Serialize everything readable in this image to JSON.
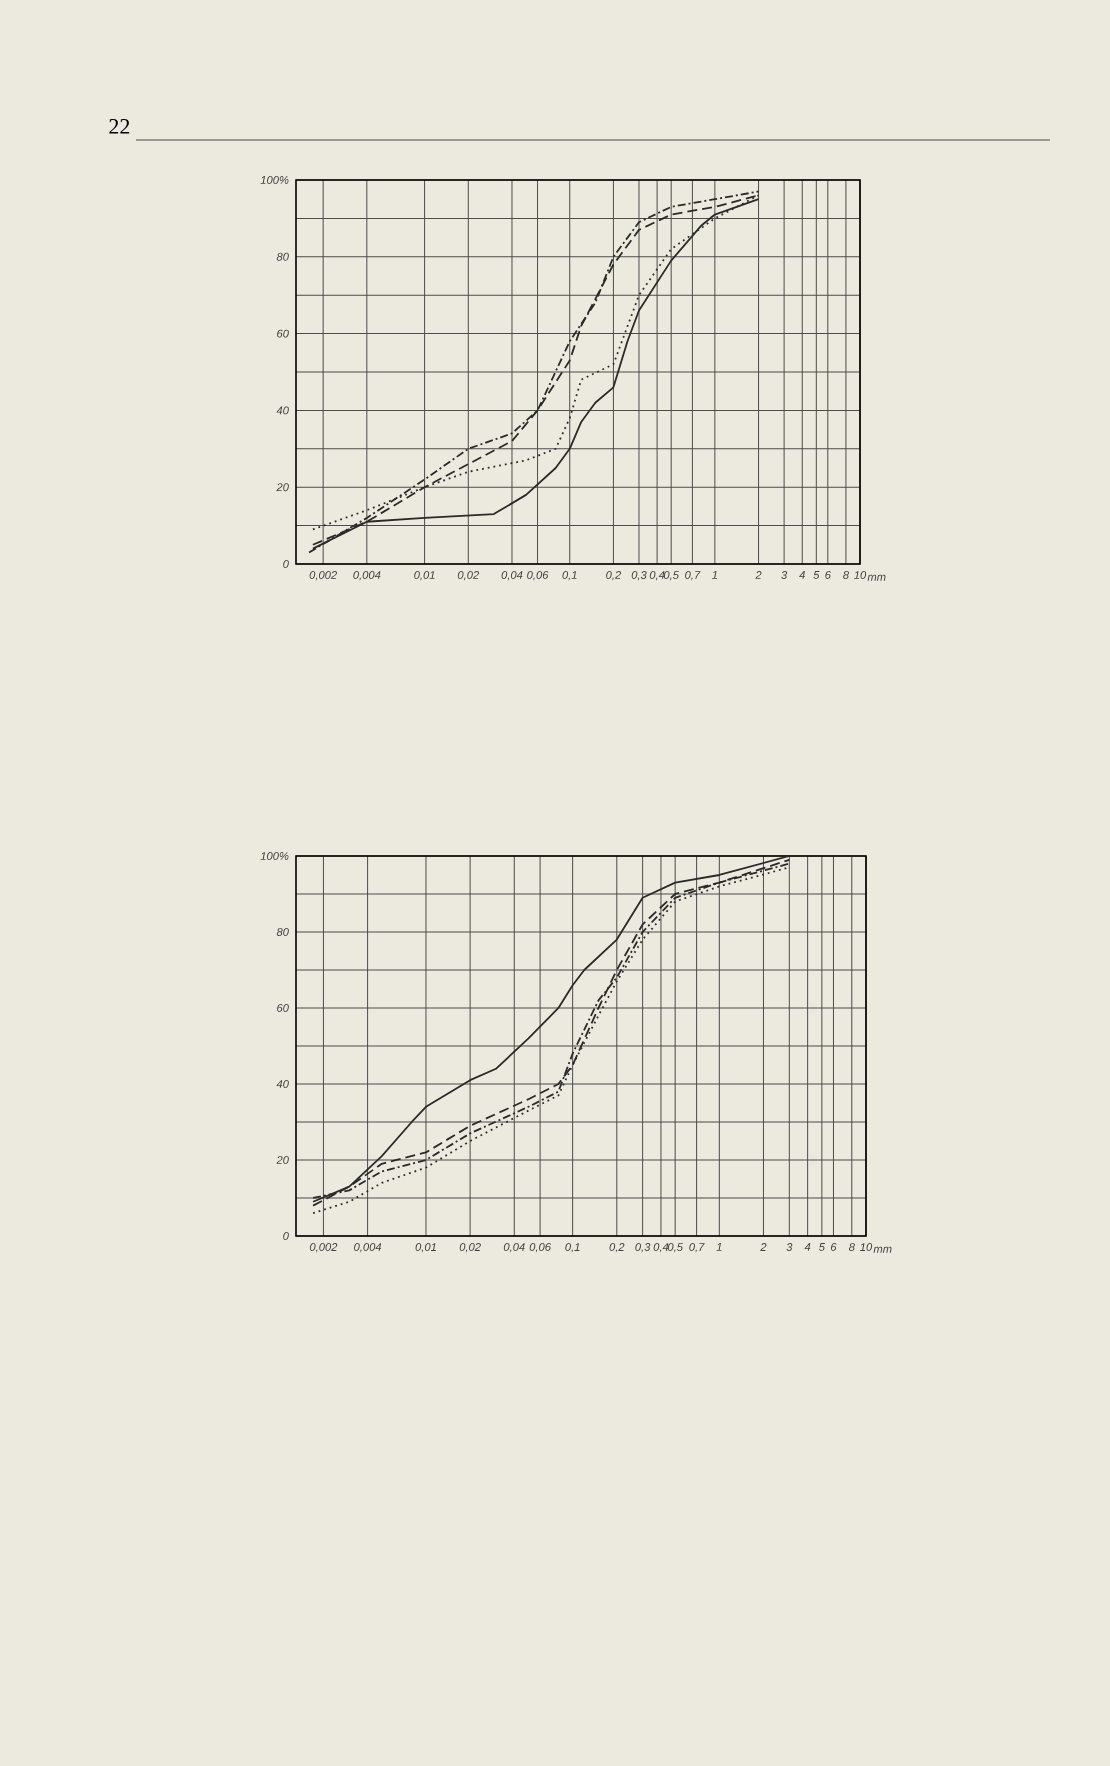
{
  "chart_data": [
    {
      "type": "line",
      "annotations": [
        "22"
      ],
      "xlim": [
        0.0013,
        10
      ],
      "ylim": [
        0,
        100
      ],
      "log": "x",
      "grid": true,
      "marker": "none",
      "xticks": [
        {
          "value": 0.002,
          "label": "0,002"
        },
        {
          "value": 0.004,
          "label": "0,004"
        },
        {
          "value": 0.01,
          "label": "0,01"
        },
        {
          "value": 0.02,
          "label": "0,02"
        },
        {
          "value": 0.04,
          "label": "0,04"
        },
        {
          "value": 0.06,
          "label": "0,06"
        },
        {
          "value": 0.1,
          "label": "0,1"
        },
        {
          "value": 0.2,
          "label": "0,2"
        },
        {
          "value": 0.3,
          "label": "0,3"
        },
        {
          "value": 0.4,
          "label": "0,4"
        },
        {
          "value": 0.5,
          "label": "0,5"
        },
        {
          "value": 0.7,
          "label": "0,7"
        },
        {
          "value": 1,
          "label": "1"
        },
        {
          "value": 2,
          "label": "2"
        },
        {
          "value": 3,
          "label": "3"
        },
        {
          "value": 4,
          "label": "4"
        },
        {
          "value": 5,
          "label": "5"
        },
        {
          "value": 6,
          "label": "6"
        },
        {
          "value": 8,
          "label": "8"
        },
        {
          "value": 10,
          "label": "10"
        }
      ],
      "xlabel": "mm",
      "yticks": [
        0,
        {
          "value": 10,
          "label": null
        },
        20,
        {
          "value": 30,
          "label": null
        },
        40,
        {
          "value": 50,
          "label": null
        },
        60,
        {
          "value": 70,
          "label": null
        },
        80,
        {
          "value": 90,
          "label": null
        },
        {
          "value": 100,
          "label": "100%"
        }
      ],
      "series": [
        {
          "color": "#2a2a2a",
          "line_style": "solid",
          "x": [
            0.0017,
            0.004,
            0.01,
            0.03,
            0.05,
            0.08,
            0.1,
            0.12,
            0.15,
            0.2,
            0.25,
            0.3,
            0.5,
            0.8,
            1,
            2
          ],
          "values": [
            4,
            11,
            12,
            13,
            18,
            25,
            30,
            37,
            42,
            46,
            58,
            66,
            79,
            88,
            91,
            95
          ]
        },
        {
          "color": "#2a2a2a",
          "line_style": "dashed",
          "x": [
            0.0017,
            0.004,
            0.01,
            0.02,
            0.04,
            0.06,
            0.1,
            0.12,
            0.2,
            0.3,
            0.5,
            1,
            2
          ],
          "values": [
            5,
            11,
            20,
            26,
            32,
            40,
            53,
            62,
            78,
            87,
            91,
            93,
            96
          ]
        },
        {
          "color": "#2a2a2a",
          "line_style": "dashdot",
          "x": [
            0.0016,
            0.004,
            0.01,
            0.02,
            0.04,
            0.06,
            0.1,
            0.15,
            0.2,
            0.3,
            0.5,
            1,
            2
          ],
          "values": [
            3,
            12,
            22,
            30,
            34,
            40,
            58,
            68,
            80,
            89,
            93,
            95,
            97
          ]
        },
        {
          "color": "#2a2a2a",
          "line_style": "dotted",
          "x": [
            0.0017,
            0.004,
            0.01,
            0.02,
            0.05,
            0.08,
            0.1,
            0.12,
            0.2,
            0.3,
            0.5,
            1,
            2
          ],
          "values": [
            9,
            14,
            20,
            24,
            27,
            30,
            38,
            48,
            52,
            70,
            82,
            90,
            96
          ]
        }
      ]
    },
    {
      "type": "line",
      "xlim": [
        0.0013,
        10
      ],
      "ylim": [
        0,
        100
      ],
      "log": "x",
      "grid": true,
      "marker": "none",
      "xticks": [
        {
          "value": 0.002,
          "label": "0,002"
        },
        {
          "value": 0.004,
          "label": "0,004"
        },
        {
          "value": 0.01,
          "label": "0,01"
        },
        {
          "value": 0.02,
          "label": "0,02"
        },
        {
          "value": 0.04,
          "label": "0,04"
        },
        {
          "value": 0.06,
          "label": "0,06"
        },
        {
          "value": 0.1,
          "label": "0,1"
        },
        {
          "value": 0.2,
          "label": "0,2"
        },
        {
          "value": 0.3,
          "label": "0,3"
        },
        {
          "value": 0.4,
          "label": "0,4"
        },
        {
          "value": 0.5,
          "label": "0,5"
        },
        {
          "value": 0.7,
          "label": "0,7"
        },
        {
          "value": 1,
          "label": "1"
        },
        {
          "value": 2,
          "label": "2"
        },
        {
          "value": 3,
          "label": "3"
        },
        {
          "value": 4,
          "label": "4"
        },
        {
          "value": 5,
          "label": "5"
        },
        {
          "value": 6,
          "label": "6"
        },
        {
          "value": 8,
          "label": "8"
        },
        {
          "value": 10,
          "label": "10"
        }
      ],
      "xlabel": "mm",
      "yticks": [
        0,
        {
          "value": 10,
          "label": null
        },
        20,
        {
          "value": 30,
          "label": null
        },
        40,
        {
          "value": 50,
          "label": null
        },
        60,
        {
          "value": 70,
          "label": null
        },
        80,
        {
          "value": 90,
          "label": null
        },
        {
          "value": 100,
          "label": "100%"
        }
      ],
      "series": [
        {
          "color": "#2a2a2a",
          "line_style": "solid",
          "x": [
            0.0017,
            0.003,
            0.005,
            0.008,
            0.01,
            0.02,
            0.03,
            0.05,
            0.08,
            0.1,
            0.12,
            0.2,
            0.3,
            0.5,
            1,
            3
          ],
          "values": [
            9,
            13,
            21,
            30,
            34,
            41,
            44,
            52,
            60,
            66,
            70,
            78,
            89,
            93,
            95,
            100
          ]
        },
        {
          "color": "#2a2a2a",
          "line_style": "dashed",
          "x": [
            0.0017,
            0.003,
            0.005,
            0.01,
            0.02,
            0.05,
            0.08,
            0.1,
            0.15,
            0.2,
            0.3,
            0.5,
            1,
            3
          ],
          "values": [
            8,
            13,
            19,
            22,
            29,
            36,
            40,
            45,
            60,
            70,
            82,
            90,
            93,
            99
          ]
        },
        {
          "color": "#2a2a2a",
          "line_style": "dashdot",
          "x": [
            0.0017,
            0.003,
            0.005,
            0.01,
            0.02,
            0.05,
            0.08,
            0.1,
            0.15,
            0.2,
            0.3,
            0.5,
            1,
            3
          ],
          "values": [
            10,
            12,
            17,
            20,
            27,
            34,
            38,
            48,
            62,
            68,
            80,
            89,
            93,
            98
          ]
        },
        {
          "color": "#2a2a2a",
          "line_style": "dotted",
          "x": [
            0.0017,
            0.003,
            0.005,
            0.01,
            0.02,
            0.05,
            0.08,
            0.1,
            0.15,
            0.2,
            0.3,
            0.5,
            1,
            3
          ],
          "values": [
            6,
            9,
            14,
            18,
            25,
            33,
            37,
            45,
            58,
            67,
            78,
            88,
            92,
            97
          ]
        }
      ]
    }
  ]
}
